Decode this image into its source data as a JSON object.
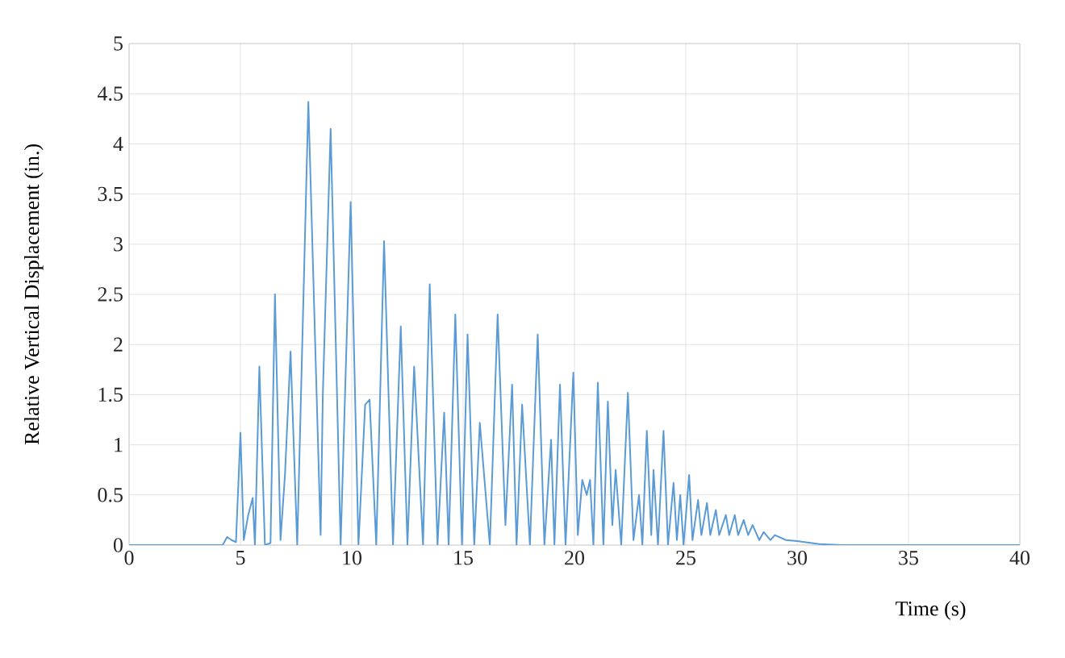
{
  "chart_data": {
    "type": "line",
    "xlabel": "Time (s)",
    "ylabel": "Relative Vertical Displacement (in.)",
    "xlim": [
      0,
      40
    ],
    "ylim": [
      0,
      5
    ],
    "xticks": [
      0,
      5,
      10,
      15,
      20,
      25,
      30,
      35,
      40
    ],
    "yticks": [
      0,
      0.5,
      1,
      1.5,
      2,
      2.5,
      3,
      3.5,
      4,
      4.5,
      5
    ],
    "grid": true,
    "legend": false,
    "marker": "none",
    "line_style": "solid",
    "series": [
      {
        "color": "#5b9bd5",
        "x": [
          0,
          4.2,
          4.4,
          4.6,
          4.8,
          5.0,
          5.15,
          5.35,
          5.55,
          5.65,
          5.85,
          6.1,
          6.35,
          6.55,
          6.8,
          7.0,
          7.25,
          7.55,
          8.05,
          8.6,
          8.7,
          9.05,
          9.5,
          9.95,
          10.3,
          10.6,
          10.8,
          11.1,
          11.45,
          11.85,
          12.2,
          12.5,
          12.8,
          13.2,
          13.5,
          13.85,
          14.15,
          14.35,
          14.65,
          14.95,
          15.2,
          15.5,
          15.75,
          16.2,
          16.55,
          16.9,
          17.2,
          17.4,
          17.65,
          18.0,
          18.35,
          18.65,
          18.95,
          19.1,
          19.35,
          19.6,
          19.95,
          20.15,
          20.35,
          20.55,
          20.7,
          20.85,
          21.05,
          21.3,
          21.5,
          21.7,
          21.85,
          22.1,
          22.4,
          22.65,
          22.9,
          23.05,
          23.25,
          23.45,
          23.55,
          23.75,
          24.0,
          24.2,
          24.45,
          24.6,
          24.75,
          24.9,
          25.15,
          25.3,
          25.55,
          25.7,
          25.95,
          26.1,
          26.35,
          26.5,
          26.8,
          26.95,
          27.2,
          27.35,
          27.6,
          27.8,
          28.0,
          28.3,
          28.5,
          28.8,
          29.0,
          29.5,
          30,
          31,
          32,
          40
        ],
        "values": [
          0,
          0,
          0.08,
          0.05,
          0.03,
          1.12,
          0.05,
          0.3,
          0.47,
          0,
          1.78,
          0,
          0.02,
          2.5,
          0.05,
          0.7,
          1.93,
          0,
          4.42,
          0.1,
          1.5,
          4.15,
          0,
          3.42,
          0,
          1.4,
          1.45,
          0,
          3.03,
          0,
          2.18,
          0,
          1.78,
          0,
          2.6,
          0,
          1.32,
          0,
          2.3,
          0,
          2.1,
          0,
          1.22,
          0,
          2.3,
          0.2,
          1.6,
          0,
          1.4,
          0,
          2.1,
          0,
          1.05,
          0,
          1.6,
          0,
          1.72,
          0.1,
          0.65,
          0.5,
          0.65,
          0,
          1.62,
          0,
          1.43,
          0.2,
          0.75,
          0,
          1.52,
          0.05,
          0.5,
          0,
          1.14,
          0.1,
          0.75,
          0,
          1.14,
          0,
          0.62,
          0.05,
          0.5,
          0,
          0.7,
          0.05,
          0.45,
          0.1,
          0.42,
          0.1,
          0.35,
          0.1,
          0.3,
          0.1,
          0.3,
          0.1,
          0.25,
          0.1,
          0.2,
          0.05,
          0.13,
          0.05,
          0.1,
          0.05,
          0.04,
          0.01,
          0,
          0
        ]
      }
    ]
  }
}
